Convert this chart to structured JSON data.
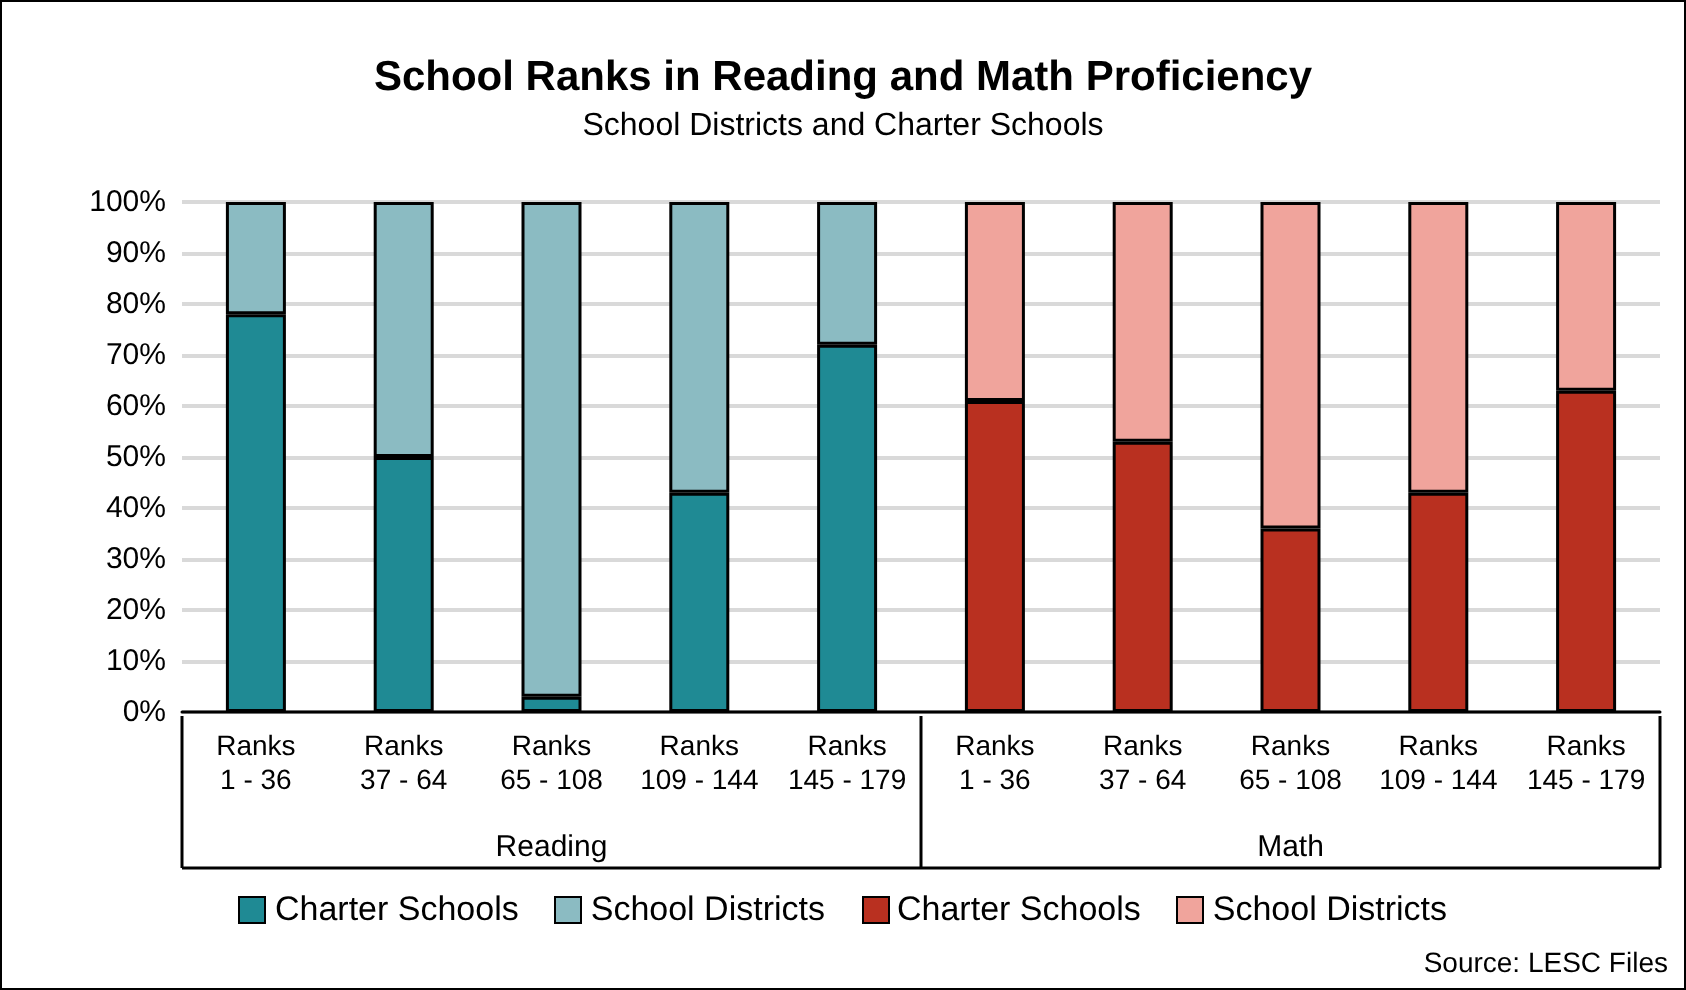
{
  "chart_data": {
    "type": "bar",
    "title": "School Ranks in Reading and Math Proficiency",
    "subtitle": "School Districts and Charter Schools",
    "categories": [
      "Ranks\n1 - 36",
      "Ranks\n37 - 64",
      "Ranks\n65 - 108",
      "Ranks\n109 - 144",
      "Ranks\n145 - 179",
      "Ranks\n1 - 36",
      "Ranks\n37 - 64",
      "Ranks\n65 - 108",
      "Ranks\n109 - 144",
      "Ranks\n145 - 179"
    ],
    "series": [
      {
        "name": "Charter Schools",
        "color": "#1f8a94",
        "values": [
          78,
          50,
          3,
          43,
          72,
          null,
          null,
          null,
          null,
          null
        ]
      },
      {
        "name": "School Districts",
        "color": "#8bbbc2",
        "values": [
          22,
          50,
          97,
          57,
          28,
          null,
          null,
          null,
          null,
          null
        ]
      },
      {
        "name": "Charter Schools",
        "color": "#b93020",
        "values": [
          null,
          null,
          null,
          null,
          null,
          61,
          53,
          36,
          43,
          63
        ]
      },
      {
        "name": "School Districts",
        "color": "#f0a49c",
        "values": [
          null,
          null,
          null,
          null,
          null,
          39,
          47,
          64,
          57,
          37
        ]
      }
    ],
    "stacked": true,
    "ylim": [
      0,
      100
    ],
    "yticks": [
      {
        "value": 0,
        "label": "0%"
      },
      {
        "value": 10,
        "label": "10%"
      },
      {
        "value": 20,
        "label": "20%"
      },
      {
        "value": 30,
        "label": "30%"
      },
      {
        "value": 40,
        "label": "40%"
      },
      {
        "value": 50,
        "label": "50%"
      },
      {
        "value": 60,
        "label": "60%"
      },
      {
        "value": 70,
        "label": "70%"
      },
      {
        "value": 80,
        "label": "80%"
      },
      {
        "value": 90,
        "label": "90%"
      },
      {
        "value": 100,
        "label": "100%"
      }
    ],
    "grid": "y",
    "legend": "bottom",
    "annotations": [
      "Reading",
      "Math",
      "Source: LESC Files"
    ]
  }
}
